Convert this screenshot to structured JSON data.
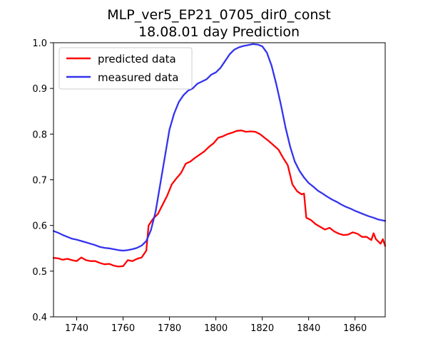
{
  "chart_data": {
    "type": "line",
    "title": [
      "MLP_ver5_EP21_0705_dir0_const",
      "18.08.01 day Prediction"
    ],
    "xlabel": "",
    "ylabel": "",
    "xlim": [
      1730,
      1873
    ],
    "ylim": [
      0.4,
      1.0
    ],
    "xticks": [
      1740,
      1760,
      1780,
      1800,
      1820,
      1840,
      1860
    ],
    "yticks": [
      0.4,
      0.5,
      0.6,
      0.7,
      0.8,
      0.9,
      1.0
    ],
    "xtick_labels": [
      "1740",
      "1760",
      "1780",
      "1800",
      "1820",
      "1840",
      "1860"
    ],
    "ytick_labels": [
      "0.4",
      "0.5",
      "0.6",
      "0.7",
      "0.8",
      "0.9",
      "1.0"
    ],
    "grid": false,
    "legend_position": "top-left",
    "series": [
      {
        "name": "predicted data",
        "color": "#ff0000",
        "points": [
          [
            1730,
            0.529
          ],
          [
            1732,
            0.528
          ],
          [
            1734,
            0.525
          ],
          [
            1736,
            0.527
          ],
          [
            1738,
            0.524
          ],
          [
            1740,
            0.522
          ],
          [
            1742,
            0.53
          ],
          [
            1744,
            0.524
          ],
          [
            1746,
            0.522
          ],
          [
            1748,
            0.522
          ],
          [
            1750,
            0.518
          ],
          [
            1752,
            0.515
          ],
          [
            1754,
            0.516
          ],
          [
            1756,
            0.512
          ],
          [
            1758,
            0.51
          ],
          [
            1760,
            0.511
          ],
          [
            1762,
            0.524
          ],
          [
            1764,
            0.522
          ],
          [
            1766,
            0.527
          ],
          [
            1768,
            0.53
          ],
          [
            1770,
            0.545
          ],
          [
            1771,
            0.6
          ],
          [
            1773,
            0.615
          ],
          [
            1775,
            0.625
          ],
          [
            1777,
            0.645
          ],
          [
            1779,
            0.665
          ],
          [
            1781,
            0.69
          ],
          [
            1783,
            0.703
          ],
          [
            1785,
            0.715
          ],
          [
            1787,
            0.735
          ],
          [
            1789,
            0.74
          ],
          [
            1791,
            0.748
          ],
          [
            1793,
            0.755
          ],
          [
            1795,
            0.762
          ],
          [
            1797,
            0.772
          ],
          [
            1799,
            0.78
          ],
          [
            1801,
            0.792
          ],
          [
            1803,
            0.795
          ],
          [
            1805,
            0.8
          ],
          [
            1807,
            0.803
          ],
          [
            1809,
            0.807
          ],
          [
            1811,
            0.808
          ],
          [
            1813,
            0.805
          ],
          [
            1815,
            0.806
          ],
          [
            1817,
            0.805
          ],
          [
            1819,
            0.8
          ],
          [
            1821,
            0.792
          ],
          [
            1823,
            0.784
          ],
          [
            1825,
            0.775
          ],
          [
            1827,
            0.766
          ],
          [
            1829,
            0.748
          ],
          [
            1831,
            0.732
          ],
          [
            1833,
            0.69
          ],
          [
            1835,
            0.675
          ],
          [
            1837,
            0.668
          ],
          [
            1838,
            0.67
          ],
          [
            1839,
            0.617
          ],
          [
            1841,
            0.612
          ],
          [
            1843,
            0.603
          ],
          [
            1845,
            0.597
          ],
          [
            1847,
            0.591
          ],
          [
            1849,
            0.595
          ],
          [
            1851,
            0.587
          ],
          [
            1853,
            0.582
          ],
          [
            1855,
            0.579
          ],
          [
            1857,
            0.58
          ],
          [
            1859,
            0.585
          ],
          [
            1861,
            0.582
          ],
          [
            1863,
            0.575
          ],
          [
            1865,
            0.575
          ],
          [
            1867,
            0.568
          ],
          [
            1868,
            0.583
          ],
          [
            1869,
            0.57
          ],
          [
            1871,
            0.56
          ],
          [
            1872,
            0.57
          ],
          [
            1873,
            0.555
          ]
        ]
      },
      {
        "name": "measured data",
        "color": "#3333ee",
        "points": [
          [
            1730,
            0.588
          ],
          [
            1732,
            0.584
          ],
          [
            1734,
            0.579
          ],
          [
            1736,
            0.575
          ],
          [
            1738,
            0.571
          ],
          [
            1740,
            0.569
          ],
          [
            1742,
            0.566
          ],
          [
            1744,
            0.563
          ],
          [
            1746,
            0.56
          ],
          [
            1748,
            0.557
          ],
          [
            1750,
            0.553
          ],
          [
            1752,
            0.551
          ],
          [
            1754,
            0.55
          ],
          [
            1756,
            0.548
          ],
          [
            1758,
            0.546
          ],
          [
            1760,
            0.545
          ],
          [
            1762,
            0.546
          ],
          [
            1764,
            0.548
          ],
          [
            1766,
            0.551
          ],
          [
            1768,
            0.556
          ],
          [
            1770,
            0.566
          ],
          [
            1772,
            0.59
          ],
          [
            1774,
            0.63
          ],
          [
            1776,
            0.69
          ],
          [
            1778,
            0.75
          ],
          [
            1780,
            0.81
          ],
          [
            1782,
            0.845
          ],
          [
            1784,
            0.87
          ],
          [
            1786,
            0.885
          ],
          [
            1788,
            0.895
          ],
          [
            1790,
            0.9
          ],
          [
            1792,
            0.91
          ],
          [
            1794,
            0.915
          ],
          [
            1796,
            0.92
          ],
          [
            1798,
            0.93
          ],
          [
            1800,
            0.935
          ],
          [
            1802,
            0.945
          ],
          [
            1804,
            0.96
          ],
          [
            1806,
            0.975
          ],
          [
            1808,
            0.985
          ],
          [
            1810,
            0.99
          ],
          [
            1812,
            0.993
          ],
          [
            1814,
            0.995
          ],
          [
            1816,
            0.997
          ],
          [
            1818,
            0.996
          ],
          [
            1820,
            0.992
          ],
          [
            1822,
            0.978
          ],
          [
            1824,
            0.95
          ],
          [
            1826,
            0.91
          ],
          [
            1828,
            0.865
          ],
          [
            1830,
            0.815
          ],
          [
            1832,
            0.773
          ],
          [
            1834,
            0.74
          ],
          [
            1836,
            0.72
          ],
          [
            1838,
            0.705
          ],
          [
            1840,
            0.693
          ],
          [
            1842,
            0.685
          ],
          [
            1844,
            0.676
          ],
          [
            1846,
            0.67
          ],
          [
            1848,
            0.663
          ],
          [
            1850,
            0.657
          ],
          [
            1852,
            0.652
          ],
          [
            1854,
            0.646
          ],
          [
            1856,
            0.641
          ],
          [
            1858,
            0.637
          ],
          [
            1860,
            0.632
          ],
          [
            1862,
            0.628
          ],
          [
            1864,
            0.624
          ],
          [
            1866,
            0.62
          ],
          [
            1868,
            0.617
          ],
          [
            1870,
            0.613
          ],
          [
            1873,
            0.61
          ]
        ]
      }
    ]
  }
}
